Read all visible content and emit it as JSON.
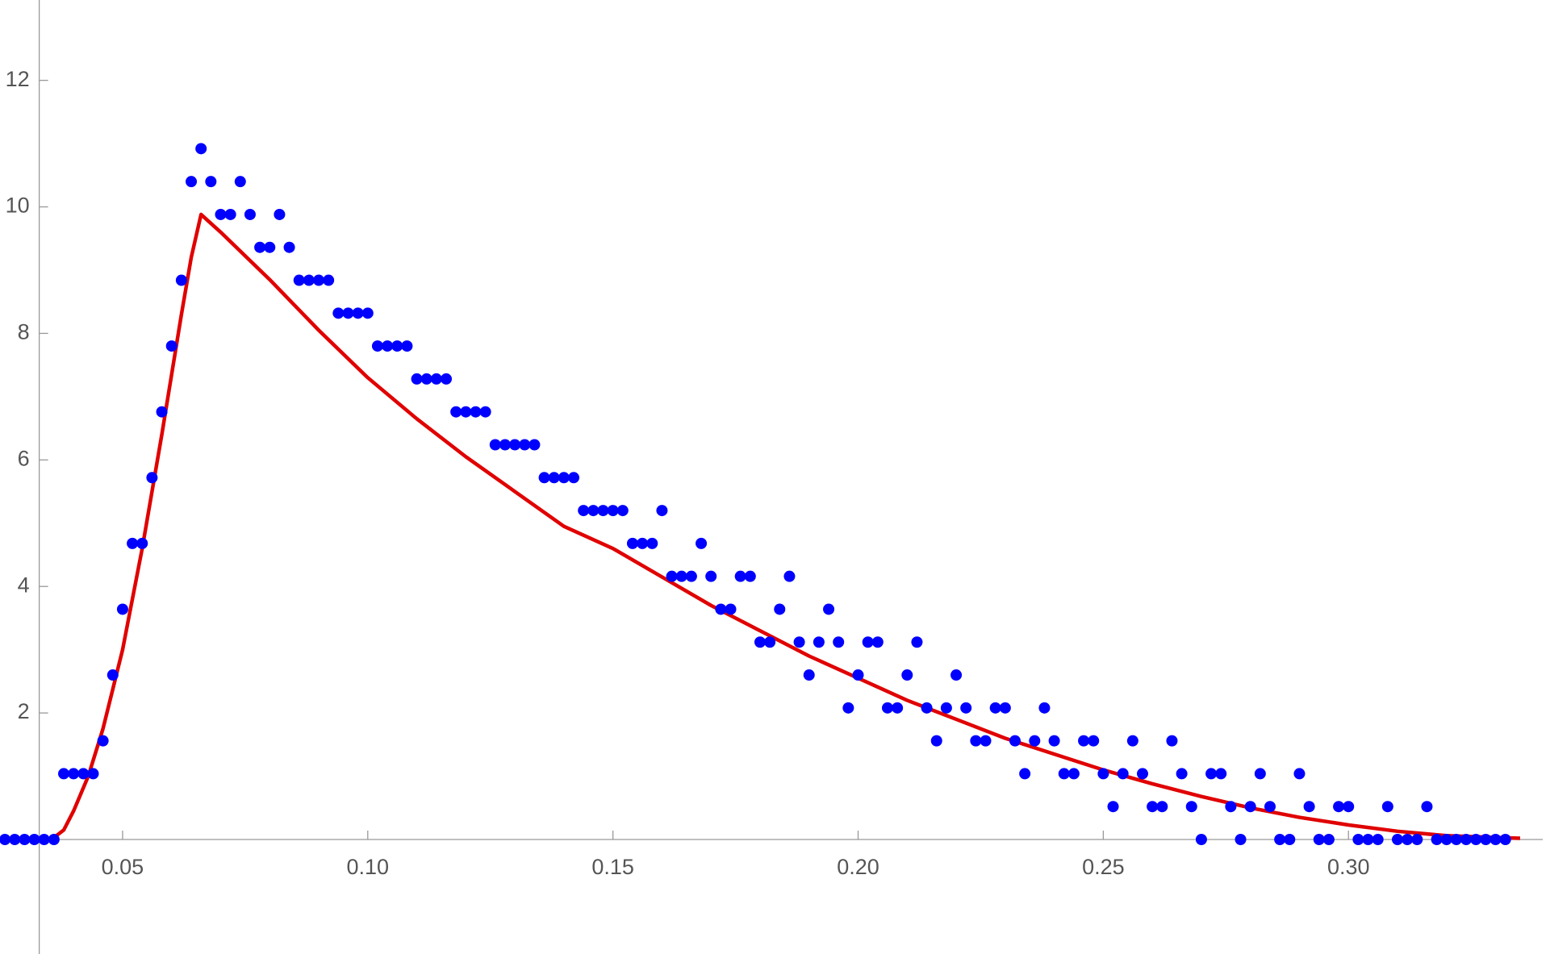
{
  "chart_data": {
    "type": "scatter",
    "xlim": [
      0.025,
      0.3411
    ],
    "ylim": [
      -1.81,
      13.27
    ],
    "origin": {
      "x": 0.033,
      "y": 0
    },
    "xticks": [
      {
        "value": 0.05,
        "label": "0.05"
      },
      {
        "value": 0.1,
        "label": "0.10"
      },
      {
        "value": 0.15,
        "label": "0.15"
      },
      {
        "value": 0.2,
        "label": "0.20"
      },
      {
        "value": 0.25,
        "label": "0.25"
      },
      {
        "value": 0.3,
        "label": "0.30"
      }
    ],
    "yticks": [
      2,
      4,
      6,
      8,
      10,
      12
    ],
    "series": [
      {
        "mode": "markers",
        "color": "#0000ff",
        "x": [
          0.026,
          0.028,
          0.03,
          0.032,
          0.034,
          0.036,
          0.038,
          0.04,
          0.042,
          0.044,
          0.046,
          0.048,
          0.05,
          0.052,
          0.054,
          0.056,
          0.058,
          0.06,
          0.062,
          0.064,
          0.066,
          0.068,
          0.07,
          0.072,
          0.074,
          0.076,
          0.078,
          0.08,
          0.082,
          0.084,
          0.086,
          0.088,
          0.09,
          0.092,
          0.094,
          0.096,
          0.098,
          0.1,
          0.102,
          0.104,
          0.106,
          0.108,
          0.11,
          0.112,
          0.114,
          0.116,
          0.118,
          0.12,
          0.122,
          0.124,
          0.126,
          0.128,
          0.13,
          0.132,
          0.134,
          0.136,
          0.138,
          0.14,
          0.142,
          0.144,
          0.146,
          0.148,
          0.15,
          0.152,
          0.154,
          0.156,
          0.158,
          0.16,
          0.162,
          0.164,
          0.166,
          0.168,
          0.17,
          0.172,
          0.174,
          0.176,
          0.178,
          0.18,
          0.182,
          0.184,
          0.186,
          0.188,
          0.19,
          0.192,
          0.194,
          0.196,
          0.198,
          0.2,
          0.202,
          0.204,
          0.206,
          0.208,
          0.21,
          0.212,
          0.214,
          0.216,
          0.218,
          0.22,
          0.222,
          0.224,
          0.226,
          0.228,
          0.23,
          0.232,
          0.234,
          0.236,
          0.238,
          0.24,
          0.242,
          0.244,
          0.246,
          0.248,
          0.25,
          0.252,
          0.254,
          0.256,
          0.258,
          0.26,
          0.262,
          0.264,
          0.266,
          0.268,
          0.27,
          0.272,
          0.274,
          0.276,
          0.278,
          0.28,
          0.282,
          0.284,
          0.286,
          0.288,
          0.29,
          0.292,
          0.294,
          0.296,
          0.298,
          0.3,
          0.302,
          0.304,
          0.306,
          0.308,
          0.31,
          0.312,
          0.314,
          0.316,
          0.318,
          0.32,
          0.322,
          0.324,
          0.326,
          0.328,
          0.33,
          0.332
        ],
        "values": [
          0,
          0,
          0,
          0,
          0,
          0,
          1.04,
          1.04,
          1.04,
          1.04,
          1.56,
          2.6,
          3.64,
          4.68,
          4.68,
          5.72,
          6.76,
          7.8,
          8.84,
          10.4,
          10.92,
          10.4,
          9.88,
          9.88,
          10.4,
          9.88,
          9.36,
          9.36,
          9.88,
          9.36,
          8.84,
          8.84,
          8.84,
          8.84,
          8.32,
          8.32,
          8.32,
          8.32,
          7.8,
          7.8,
          7.8,
          7.8,
          7.28,
          7.28,
          7.28,
          7.28,
          6.76,
          6.76,
          6.76,
          6.76,
          6.24,
          6.24,
          6.24,
          6.24,
          6.24,
          5.72,
          5.72,
          5.72,
          5.72,
          5.2,
          5.2,
          5.2,
          5.2,
          5.2,
          4.68,
          4.68,
          4.68,
          5.2,
          4.16,
          4.16,
          4.16,
          4.68,
          4.16,
          3.64,
          3.64,
          4.16,
          4.16,
          3.12,
          3.12,
          3.64,
          4.16,
          3.12,
          2.6,
          3.12,
          3.64,
          3.12,
          2.08,
          2.6,
          3.12,
          3.12,
          2.08,
          2.08,
          2.6,
          3.12,
          2.08,
          1.56,
          2.08,
          2.6,
          2.08,
          1.56,
          1.56,
          2.08,
          2.08,
          1.56,
          1.04,
          1.56,
          2.08,
          1.56,
          1.04,
          1.04,
          1.56,
          1.56,
          1.04,
          0.52,
          1.04,
          1.56,
          1.04,
          0.52,
          0.52,
          1.56,
          1.04,
          0.52,
          0,
          1.04,
          1.04,
          0.52,
          0,
          0.52,
          1.04,
          0.52,
          0,
          0,
          1.04,
          0.52,
          0,
          0,
          0.52,
          0.52,
          0,
          0,
          0,
          0.52,
          0,
          0,
          0,
          0.52,
          0,
          0,
          0,
          0,
          0,
          0,
          0,
          0
        ]
      },
      {
        "mode": "line",
        "color": "#e00000",
        "x": [
          0.0355,
          0.038,
          0.04,
          0.043,
          0.046,
          0.05,
          0.054,
          0.058,
          0.062,
          0.064,
          0.066,
          0.07,
          0.08,
          0.09,
          0.1,
          0.11,
          0.12,
          0.13,
          0.14,
          0.15,
          0.16,
          0.17,
          0.18,
          0.19,
          0.2,
          0.21,
          0.22,
          0.23,
          0.24,
          0.25,
          0.26,
          0.27,
          0.28,
          0.29,
          0.3,
          0.31,
          0.32,
          0.335
        ],
        "values": [
          0,
          0.15,
          0.45,
          1.0,
          1.75,
          3.0,
          4.6,
          6.4,
          8.3,
          9.2,
          9.88,
          9.6,
          8.85,
          8.05,
          7.3,
          6.65,
          6.05,
          5.5,
          4.95,
          4.6,
          4.15,
          3.7,
          3.3,
          2.9,
          2.55,
          2.2,
          1.9,
          1.6,
          1.35,
          1.1,
          0.88,
          0.68,
          0.5,
          0.35,
          0.23,
          0.13,
          0.06,
          0.02
        ]
      }
    ]
  }
}
